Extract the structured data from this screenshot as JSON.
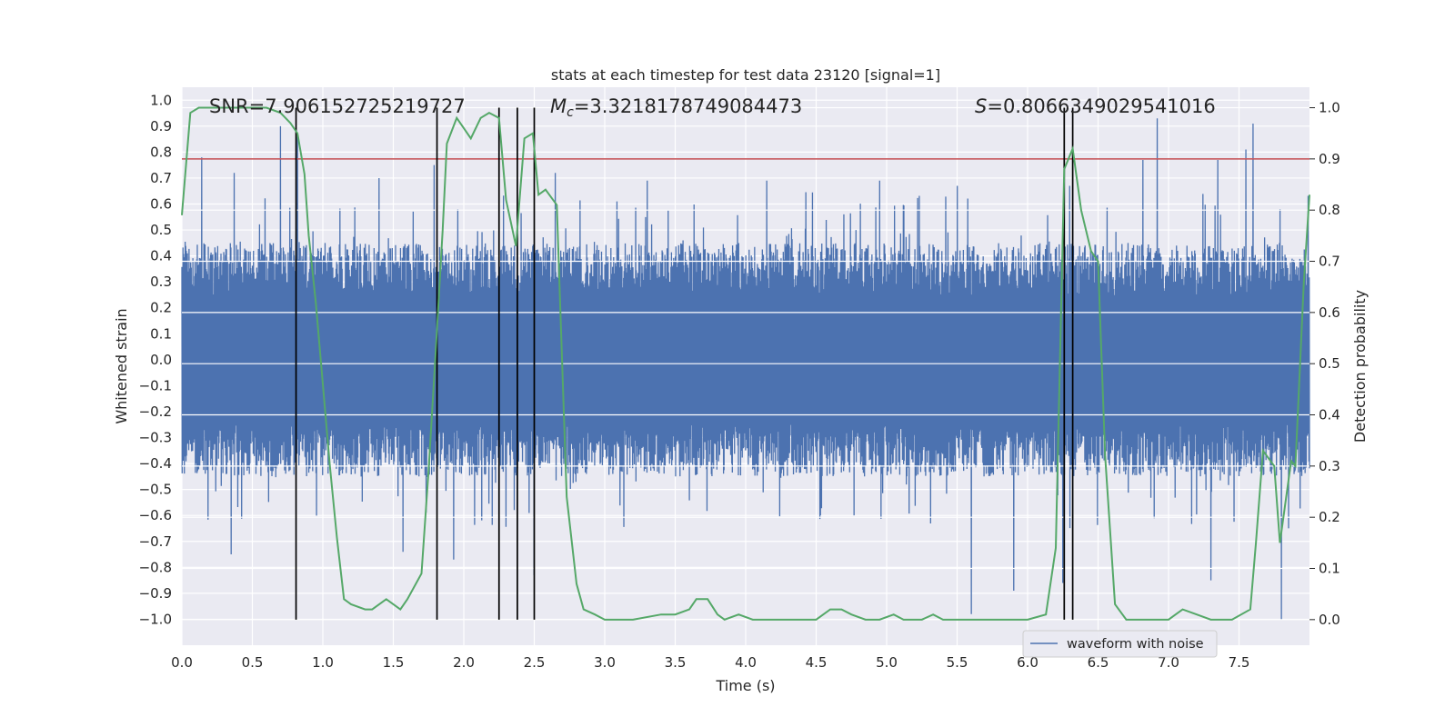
{
  "chart_data": {
    "type": "line",
    "title": "stats at each timestep for test data 23120 [signal=1]",
    "xlabel": "Time (s)",
    "ylabel": "Whitened strain",
    "y2label": "Detection probability",
    "xlim": [
      0,
      8
    ],
    "ylim": [
      -1.1,
      1.05
    ],
    "y2lim": [
      -0.05,
      1.04
    ],
    "x_ticks": [
      "0.0",
      "0.5",
      "1.0",
      "1.5",
      "2.0",
      "2.5",
      "3.0",
      "3.5",
      "4.0",
      "4.5",
      "5.0",
      "5.5",
      "6.0",
      "6.5",
      "7.0",
      "7.5"
    ],
    "y_ticks": [
      "1.0",
      "0.9",
      "0.8",
      "0.7",
      "0.6",
      "0.5",
      "0.4",
      "0.3",
      "0.2",
      "0.1",
      "0.0",
      "−0.1",
      "−0.2",
      "−0.3",
      "−0.4",
      "−0.5",
      "−0.6",
      "−0.7",
      "−0.8",
      "−0.9",
      "−1.0"
    ],
    "y2_ticks": [
      "1.0",
      "0.9",
      "0.8",
      "0.7",
      "0.6",
      "0.5",
      "0.4",
      "0.3",
      "0.2",
      "0.1",
      "0.0"
    ],
    "grid": true,
    "legend": {
      "entries": [
        "waveform with noise"
      ],
      "placement": "lower-right"
    },
    "annotations": {
      "snr": "SNR=7.906152725219727",
      "mc_symbol": "M",
      "mc_sub": "c",
      "mc_value": "=3.3218178749084473",
      "s_symbol": "S",
      "s_value": "=0.8066349029541016"
    },
    "threshold": {
      "value": 0.9,
      "axis": "right",
      "color": "#c44e52"
    },
    "vertical_lines": [
      0.81,
      1.81,
      2.25,
      2.38,
      2.5,
      6.26,
      6.32
    ],
    "waveform": {
      "name": "waveform with noise",
      "color": "#4c72b0",
      "typical_amplitude": 0.45,
      "peaks": [
        {
          "x": 0.14,
          "y": 0.78
        },
        {
          "x": 0.37,
          "y": 0.72
        },
        {
          "x": 0.7,
          "y": 0.9
        },
        {
          "x": 0.82,
          "y": 0.86
        },
        {
          "x": 1.4,
          "y": 0.7
        },
        {
          "x": 1.79,
          "y": 0.75
        },
        {
          "x": 2.65,
          "y": 0.72
        },
        {
          "x": 3.3,
          "y": 0.69
        },
        {
          "x": 4.15,
          "y": 0.69
        },
        {
          "x": 4.95,
          "y": 0.69
        },
        {
          "x": 5.5,
          "y": 0.67
        },
        {
          "x": 6.3,
          "y": 0.67
        },
        {
          "x": 6.82,
          "y": 0.77
        },
        {
          "x": 6.92,
          "y": 0.93
        },
        {
          "x": 7.35,
          "y": 0.77
        },
        {
          "x": 7.55,
          "y": 0.81
        },
        {
          "x": 7.6,
          "y": 0.91
        }
      ],
      "troughs": [
        {
          "x": 0.35,
          "y": -0.75
        },
        {
          "x": 1.57,
          "y": -0.74
        },
        {
          "x": 1.93,
          "y": -0.77
        },
        {
          "x": 2.5,
          "y": -0.83
        },
        {
          "x": 5.6,
          "y": -0.98
        },
        {
          "x": 5.9,
          "y": -0.89
        },
        {
          "x": 6.25,
          "y": -0.86
        },
        {
          "x": 7.3,
          "y": -0.85
        },
        {
          "x": 7.8,
          "y": -1.0
        }
      ]
    },
    "probability": {
      "color": "#55a868",
      "x": [
        0.0,
        0.06,
        0.12,
        0.2,
        0.4,
        0.6,
        0.7,
        0.77,
        0.82,
        0.87,
        0.9,
        0.95,
        1.0,
        1.05,
        1.1,
        1.15,
        1.2,
        1.3,
        1.35,
        1.45,
        1.5,
        1.55,
        1.6,
        1.7,
        1.75,
        1.8,
        1.85,
        1.88,
        1.95,
        2.05,
        2.12,
        2.18,
        2.25,
        2.3,
        2.37,
        2.43,
        2.49,
        2.53,
        2.58,
        2.66,
        2.73,
        2.8,
        2.85,
        2.93,
        3.0,
        3.2,
        3.4,
        3.5,
        3.6,
        3.65,
        3.73,
        3.8,
        3.85,
        3.95,
        4.05,
        4.2,
        4.4,
        4.5,
        4.6,
        4.68,
        4.75,
        4.85,
        4.95,
        5.05,
        5.12,
        5.25,
        5.33,
        5.4,
        5.5,
        5.6,
        5.8,
        6.0,
        6.13,
        6.2,
        6.26,
        6.32,
        6.38,
        6.45,
        6.5,
        6.55,
        6.62,
        6.7,
        6.8,
        7.0,
        7.05,
        7.1,
        7.2,
        7.3,
        7.45,
        7.58,
        7.62,
        7.67,
        7.75,
        7.79,
        7.83,
        7.87,
        7.9,
        7.93,
        7.96,
        8.0
      ],
      "y": [
        0.79,
        0.99,
        1.0,
        1.0,
        1.0,
        1.0,
        0.99,
        0.97,
        0.95,
        0.87,
        0.75,
        0.62,
        0.46,
        0.3,
        0.16,
        0.04,
        0.03,
        0.02,
        0.02,
        0.04,
        0.03,
        0.02,
        0.04,
        0.09,
        0.29,
        0.52,
        0.76,
        0.93,
        0.98,
        0.94,
        0.98,
        0.99,
        0.98,
        0.82,
        0.73,
        0.94,
        0.95,
        0.83,
        0.84,
        0.81,
        0.24,
        0.07,
        0.02,
        0.01,
        0.0,
        0.0,
        0.01,
        0.01,
        0.02,
        0.04,
        0.04,
        0.01,
        0.0,
        0.01,
        0.0,
        0.0,
        0.0,
        0.0,
        0.02,
        0.02,
        0.01,
        0.0,
        0.0,
        0.01,
        0.0,
        0.0,
        0.01,
        0.0,
        0.0,
        0.0,
        0.0,
        0.0,
        0.01,
        0.14,
        0.88,
        0.92,
        0.8,
        0.72,
        0.7,
        0.32,
        0.03,
        0.0,
        0.0,
        0.0,
        0.01,
        0.02,
        0.01,
        0.0,
        0.0,
        0.02,
        0.15,
        0.33,
        0.3,
        0.15,
        0.23,
        0.31,
        0.3,
        0.48,
        0.66,
        0.83
      ]
    }
  }
}
